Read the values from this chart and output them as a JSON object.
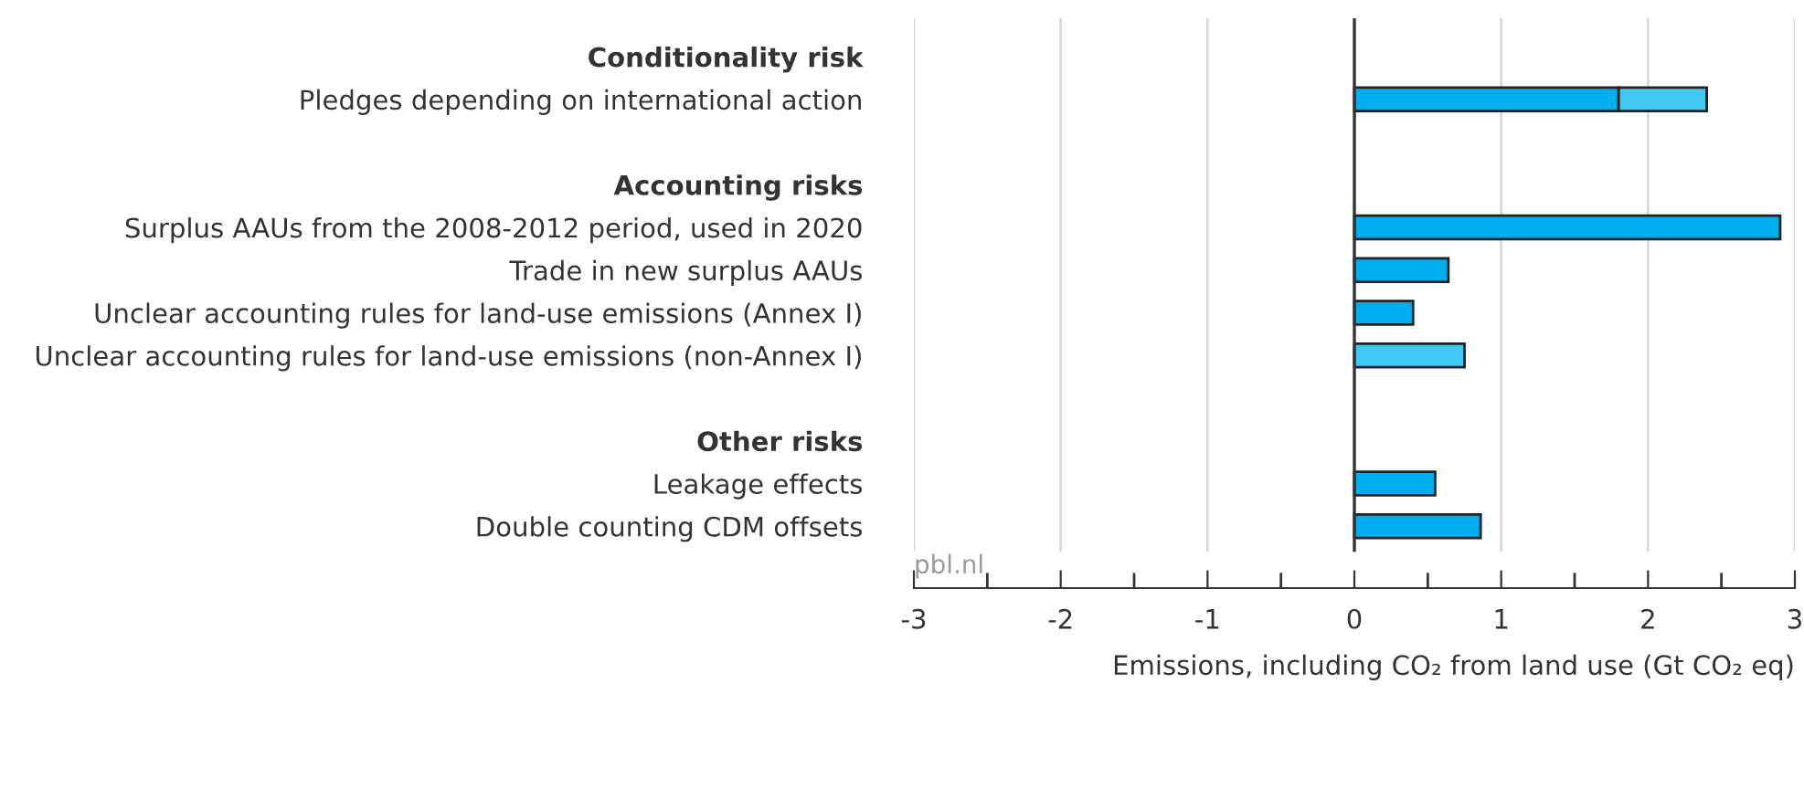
{
  "chart_data": {
    "type": "bar",
    "orientation": "horizontal",
    "stacked": true,
    "categories": [
      "Conditionality risk",
      "Pledges depending on international action",
      null,
      "Accounting risks",
      "Surplus AAUs from the 2008-2012 period, used in 2020",
      "Trade in new surplus AAUs",
      "Unclear accounting rules for land-use emissions (Annex I)",
      "Unclear accounting rules for land-use emissions (non-Annex I)",
      null,
      "Other risks",
      "Leakage effects",
      "Double counting CDM offsets"
    ],
    "series": [
      {
        "color": "#00aeef",
        "values": [
          null,
          1.8,
          null,
          null,
          2.9,
          0.64,
          0.4,
          null,
          null,
          null,
          0.55,
          0.86
        ]
      },
      {
        "color": "#41c8f4",
        "values": [
          null,
          0.6,
          null,
          null,
          null,
          null,
          null,
          0.75,
          null,
          null,
          null,
          null
        ]
      }
    ],
    "xlim": [
      -3,
      3
    ],
    "xticks": [
      {
        "value": -3,
        "label": "-3"
      },
      {
        "value": -2.5,
        "label": null
      },
      {
        "value": -2,
        "label": "-2"
      },
      {
        "value": -1.5,
        "label": null
      },
      {
        "value": -1,
        "label": "-1"
      },
      {
        "value": -0.5,
        "label": null
      },
      0,
      {
        "value": 0.5,
        "label": null
      },
      1,
      {
        "value": 1.5,
        "label": null
      },
      2,
      {
        "value": 2.5,
        "label": null
      },
      3
    ],
    "xlabel": "Emissions, including CO₂ from land use (Gt CO₂ eq)",
    "ref_lines": [
      {
        "axis": "x",
        "value": 0,
        "color": "#333333"
      }
    ],
    "annotations": [
      "pbl.nl"
    ],
    "grid": "x",
    "legend": false
  }
}
